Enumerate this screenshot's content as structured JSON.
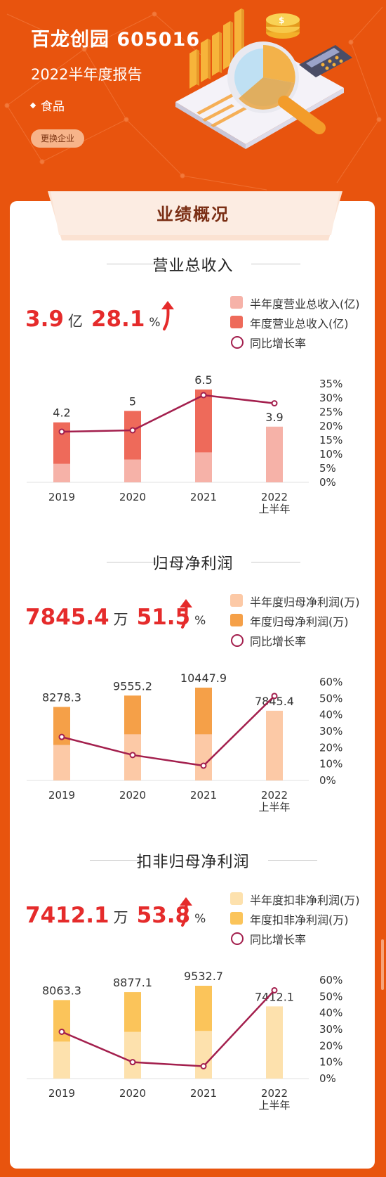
{
  "header": {
    "company": "百龙创园 605016",
    "report": "2022半年度报告",
    "industry": "食品",
    "change_button": "更换企业"
  },
  "tab_title": "业绩概况",
  "colors": {
    "background": "#e8540e",
    "kpi_red": "#e52b2b",
    "line": "#a31f4d"
  },
  "chart_data": [
    {
      "type": "bar",
      "title": "营业总收入",
      "kpi": {
        "value": "3.9",
        "unit": "亿",
        "growth": "28.1",
        "growth_unit": "%"
      },
      "legend": [
        "半年度营业总收入(亿)",
        "年度营业总收入(亿)",
        "同比增长率"
      ],
      "categories": [
        "2019",
        "2020",
        "2021",
        "2022\n上半年"
      ],
      "series": [
        {
          "name": "半年度营业总收入(亿)",
          "values": [
            1.3,
            1.6,
            2.1,
            3.9
          ],
          "color": "#f6b2a8"
        },
        {
          "name": "年度营业总收入(亿)",
          "values": [
            4.2,
            5.0,
            6.5,
            null
          ],
          "color": "#ee6a5a"
        }
      ],
      "bar_labels": [
        "4.2",
        "5",
        "6.5",
        "3.9"
      ],
      "line": {
        "name": "同比增长率",
        "values": [
          18.0,
          18.5,
          31.0,
          28.1
        ]
      },
      "y2_ticks": [
        "35%",
        "30%",
        "25%",
        "20%",
        "15%",
        "10%",
        "5%",
        "0%"
      ],
      "y2lim": [
        0,
        35
      ],
      "ylim": [
        0,
        6.5
      ]
    },
    {
      "type": "bar",
      "title": "归母净利润",
      "kpi": {
        "value": "7845.4",
        "unit": "万",
        "growth": "51.5",
        "growth_unit": "%"
      },
      "legend": [
        "半年度归母净利润(万)",
        "年度归母净利润(万)",
        "同比增长率"
      ],
      "categories": [
        "2019",
        "2020",
        "2021",
        "2022\n上半年"
      ],
      "series": [
        {
          "name": "半年度归母净利润(万)",
          "values": [
            4000,
            5200,
            5200,
            7845.4
          ],
          "color": "#fcc9a6"
        },
        {
          "name": "年度归母净利润(万)",
          "values": [
            8278.3,
            9555.2,
            10447.9,
            null
          ],
          "color": "#f5a048"
        }
      ],
      "bar_labels": [
        "8278.3",
        "9555.2",
        "10447.9",
        "7845.4"
      ],
      "line": {
        "name": "同比增长率",
        "values": [
          26.5,
          15.5,
          9.0,
          51.5
        ]
      },
      "y2_ticks": [
        "60%",
        "50%",
        "40%",
        "30%",
        "20%",
        "10%",
        "0%"
      ],
      "y2lim": [
        0,
        60
      ],
      "ylim": [
        0,
        10447.9
      ]
    },
    {
      "type": "bar",
      "title": "扣非归母净利润",
      "kpi": {
        "value": "7412.1",
        "unit": "万",
        "growth": "53.8",
        "growth_unit": "%"
      },
      "legend": [
        "半年度扣非净利润(万)",
        "年度扣非净利润(万)",
        "同比增长率"
      ],
      "categories": [
        "2019",
        "2020",
        "2021",
        "2022\n上半年"
      ],
      "series": [
        {
          "name": "半年度扣非净利润(万)",
          "values": [
            3800,
            4800,
            4900,
            7412.1
          ],
          "color": "#fde1ad"
        },
        {
          "name": "年度扣非净利润(万)",
          "values": [
            8063.3,
            8877.1,
            9532.7,
            null
          ],
          "color": "#fbc45a"
        }
      ],
      "bar_labels": [
        "8063.3",
        "8877.1",
        "9532.7",
        "7412.1"
      ],
      "line": {
        "name": "同比增长率",
        "values": [
          28.5,
          10.0,
          7.5,
          53.8
        ]
      },
      "y2_ticks": [
        "60%",
        "50%",
        "40%",
        "30%",
        "20%",
        "10%",
        "0%"
      ],
      "y2lim": [
        0,
        60
      ],
      "ylim": [
        0,
        9532.7
      ]
    }
  ]
}
